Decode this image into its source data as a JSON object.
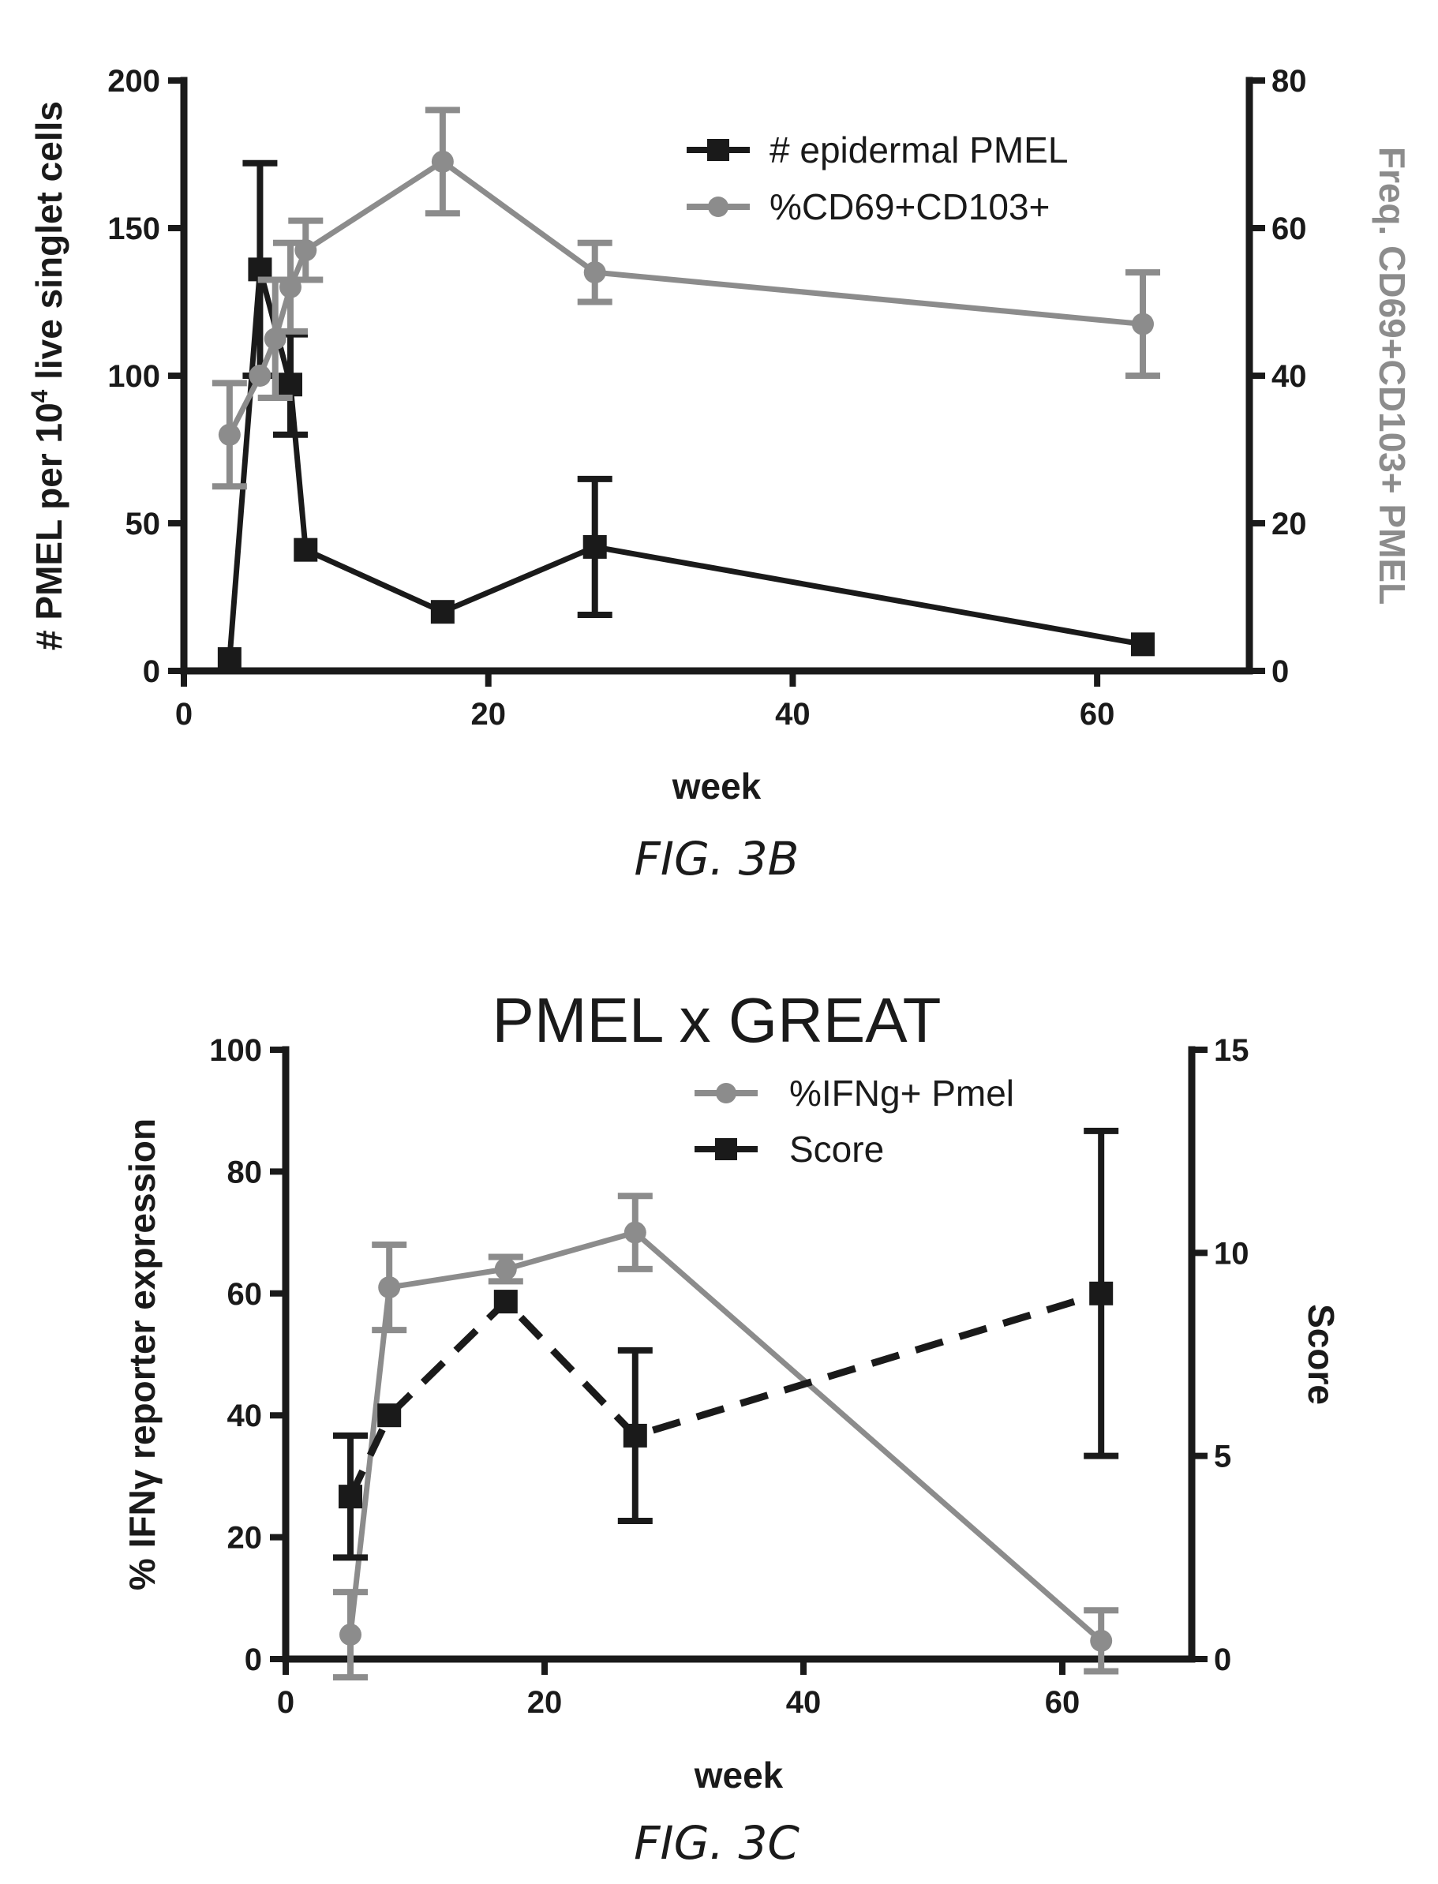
{
  "chart_data": [
    {
      "type": "line",
      "caption": "FIG. 3B",
      "title": "",
      "xlabel": "week",
      "ylabel_left": "# PMEL per 10",
      "ylabel_left_sup": "4",
      "ylabel_left_tail": " live singlet cells",
      "ylabel_right": "Freq. CD69+CD103+ PMEL",
      "xlim": [
        0,
        70
      ],
      "ylim_left": [
        0,
        200
      ],
      "ylim_right": [
        0,
        80
      ],
      "xticks": [
        "0",
        "20",
        "40",
        "60"
      ],
      "xtick_values": [
        0,
        20,
        40,
        60
      ],
      "yticks_left": [
        "0",
        "50",
        "100",
        "150",
        "200"
      ],
      "ytick_left_values": [
        0,
        50,
        100,
        150,
        200
      ],
      "yticks_right": [
        "0",
        "20",
        "40",
        "60",
        "80"
      ],
      "ytick_right_values": [
        0,
        20,
        40,
        60,
        80
      ],
      "legend_position": "top-right",
      "series": [
        {
          "name": "# epidermal PMEL",
          "axis": "left",
          "color": "#1a1a1a",
          "marker": "square",
          "dashed": false,
          "points": [
            {
              "x": 3,
              "y": 4,
              "err": 0
            },
            {
              "x": 5,
              "y": 136,
              "err": 36
            },
            {
              "x": 7,
              "y": 97,
              "err": 17
            },
            {
              "x": 8,
              "y": 41,
              "err": 0
            },
            {
              "x": 17,
              "y": 20,
              "err": 0
            },
            {
              "x": 27,
              "y": 42,
              "err": 23
            },
            {
              "x": 63,
              "y": 9,
              "err": 0
            }
          ]
        },
        {
          "name": "%CD69+CD103+",
          "axis": "right",
          "color": "#8c8c8c",
          "marker": "circle",
          "dashed": false,
          "points": [
            {
              "x": 3,
              "y": 32,
              "err": 7
            },
            {
              "x": 5,
              "y": 40,
              "err": 0
            },
            {
              "x": 6,
              "y": 45,
              "err": 8
            },
            {
              "x": 7,
              "y": 52,
              "err": 6
            },
            {
              "x": 8,
              "y": 57,
              "err": 4
            },
            {
              "x": 17,
              "y": 69,
              "err": 7
            },
            {
              "x": 27,
              "y": 54,
              "err": 4
            },
            {
              "x": 63,
              "y": 47,
              "err": 7
            }
          ]
        }
      ]
    },
    {
      "type": "line",
      "caption": "FIG. 3C",
      "title": "PMEL x GREAT",
      "xlabel": "week",
      "ylabel_left": "% IFNγ reporter expression",
      "ylabel_left_sup": "",
      "ylabel_left_tail": "",
      "ylabel_right": "Score",
      "xlim": [
        0,
        70
      ],
      "ylim_left": [
        0,
        100
      ],
      "ylim_right": [
        0,
        15
      ],
      "xticks": [
        "0",
        "20",
        "40",
        "60"
      ],
      "xtick_values": [
        0,
        20,
        40,
        60
      ],
      "yticks_left": [
        "0",
        "20",
        "40",
        "60",
        "80",
        "100"
      ],
      "ytick_left_values": [
        0,
        20,
        40,
        60,
        80,
        100
      ],
      "yticks_right": [
        "0",
        "5",
        "10",
        "15"
      ],
      "ytick_right_values": [
        0,
        5,
        10,
        15
      ],
      "legend_position": "top-right",
      "series": [
        {
          "name": "%IFNg+ Pmel",
          "axis": "left",
          "color": "#8c8c8c",
          "marker": "circle",
          "dashed": false,
          "points": [
            {
              "x": 5,
              "y": 4,
              "err": 7
            },
            {
              "x": 8,
              "y": 61,
              "err": 7
            },
            {
              "x": 17,
              "y": 64,
              "err": 2
            },
            {
              "x": 27,
              "y": 70,
              "err": 6
            },
            {
              "x": 63,
              "y": 3,
              "err": 5
            }
          ]
        },
        {
          "name": "Score",
          "axis": "right",
          "color": "#1a1a1a",
          "marker": "square",
          "dashed": true,
          "points": [
            {
              "x": 5,
              "y": 4,
              "err": 1.5
            },
            {
              "x": 8,
              "y": 6,
              "err": 0
            },
            {
              "x": 17,
              "y": 8.8,
              "err": 0
            },
            {
              "x": 27,
              "y": 5.5,
              "err": 2.1
            },
            {
              "x": 63,
              "y": 9,
              "err": 4
            }
          ]
        }
      ]
    }
  ]
}
